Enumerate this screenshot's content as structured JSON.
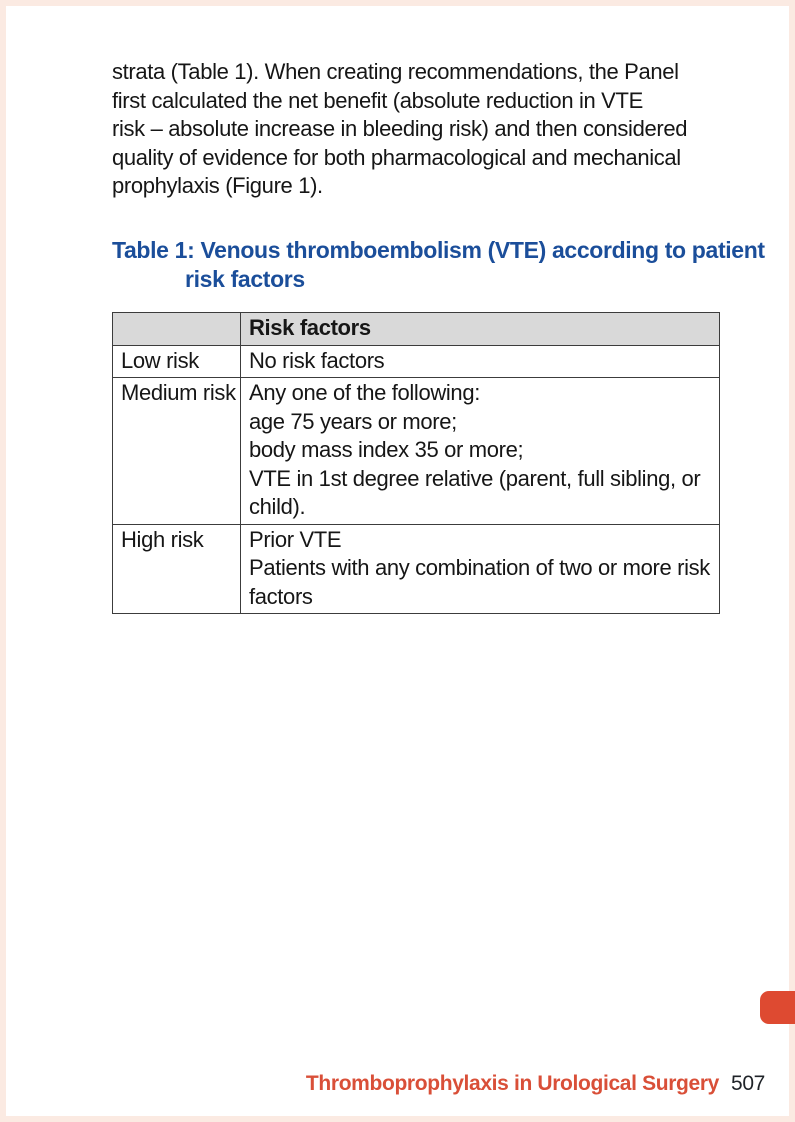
{
  "document": {
    "paragraph": "strata (Table 1). When creating recommendations, the Panel\nfirst calculated the net benefit (absolute reduction in VTE\nrisk – absolute increase in bleeding risk) and then considered\nquality of evidence for both pharmacological and mechanical\nprophylaxis (Figure 1).",
    "table_caption": {
      "label": "Table 1:",
      "text": "Venous thromboembolism (VTE) according to patient risk factors"
    },
    "table": {
      "header": [
        "",
        "Risk factors"
      ],
      "rows": [
        {
          "level": "Low risk",
          "factors": [
            "No risk factors"
          ]
        },
        {
          "level": "Medium risk",
          "factors": [
            "Any one of the following:",
            "age 75 years or more;",
            "body mass index 35 or more;",
            "VTE in 1st degree relative (parent, full sibling, or child)."
          ]
        },
        {
          "level": "High risk",
          "factors": [
            "Prior VTE",
            "Patients with any combination of two or more risk factors"
          ]
        }
      ]
    },
    "footer": {
      "title": "Thromboprophylaxis in Urological Surgery",
      "page_number": "507"
    }
  },
  "colors": {
    "title_blue": "#1b4e9a",
    "accent_red": "#de4a31",
    "footer_red": "#d94f38",
    "table_header_bg": "#d9d9d9"
  }
}
